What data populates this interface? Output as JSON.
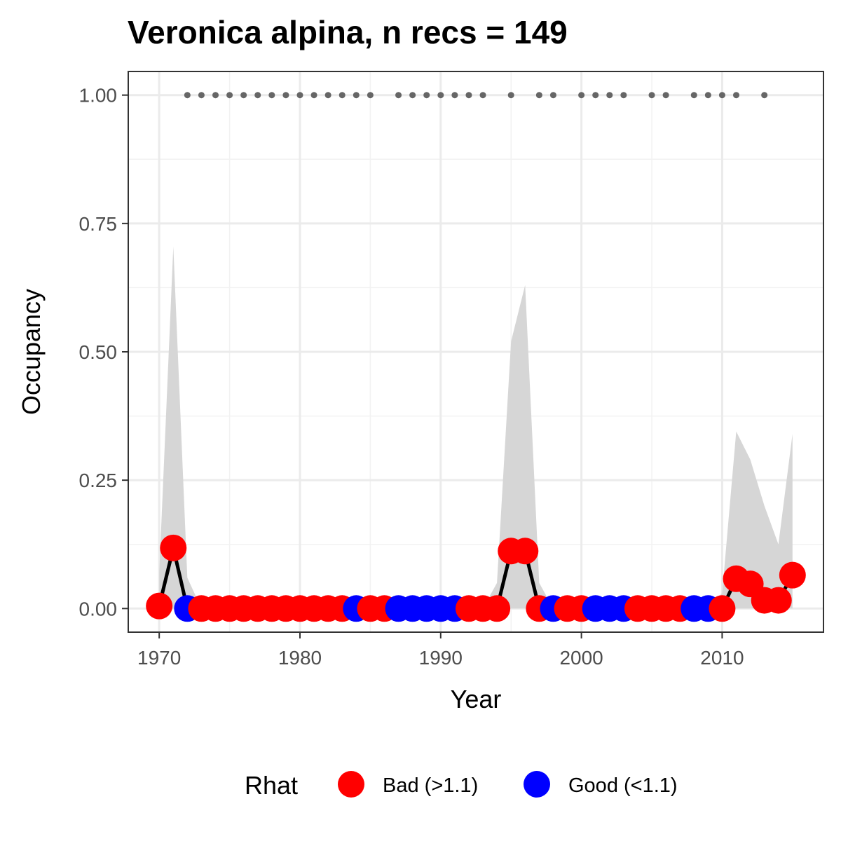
{
  "chart_data": {
    "type": "line",
    "title": "Veronica alpina, n recs = 149",
    "xlabel": "Year",
    "ylabel": "Occupancy",
    "xlim": [
      1967.8,
      2017.2
    ],
    "ylim": [
      -0.046,
      1.046
    ],
    "x_ticks": [
      1970,
      1980,
      1990,
      2000,
      2010
    ],
    "x_tick_labels": [
      "1970",
      "1980",
      "1990",
      "2000",
      "2010"
    ],
    "y_ticks": [
      0,
      0.25,
      0.5,
      0.75,
      1.0
    ],
    "y_tick_labels": [
      "0.00",
      "0.25",
      "0.50",
      "0.75",
      "1.00"
    ],
    "grid": true,
    "legend": {
      "title": "Rhat",
      "position": "bottom",
      "entries": [
        {
          "key": "bad",
          "label": "Bad (>1.1)",
          "color": "#ff0000"
        },
        {
          "key": "good",
          "label": "Good (<1.1)",
          "color": "#0000ff"
        }
      ]
    },
    "colors": {
      "bad": "#ff0000",
      "good": "#0000ff",
      "line": "#000000",
      "ribbon": "#d6d6d6",
      "records": "#666666"
    },
    "series": [
      {
        "x": [
          1970,
          1971,
          1972,
          1973,
          1974,
          1975,
          1976,
          1977,
          1978,
          1979,
          1980,
          1981,
          1982,
          1983,
          1984,
          1985,
          1986,
          1987,
          1988,
          1989,
          1990,
          1991,
          1992,
          1993,
          1994,
          1995,
          1996,
          1997,
          1998,
          1999,
          2000,
          2001,
          2002,
          2003,
          2004,
          2005,
          2006,
          2007,
          2008,
          2009,
          2010,
          2011,
          2012,
          2013,
          2014,
          2015
        ],
        "y": [
          0.005,
          0.118,
          0.0,
          0.0,
          0.0,
          0.0,
          0.0,
          0.0,
          0.0,
          0.0,
          0.0,
          0.0,
          0.0,
          0.0,
          0.0,
          0.0,
          0.0,
          0.0,
          0.0,
          0.0,
          0.0,
          0.0,
          0.0,
          0.0,
          0.0,
          0.112,
          0.112,
          0.0,
          0.0,
          0.0,
          0.0,
          0.0,
          0.0,
          0.0,
          0.0,
          0.0,
          0.0,
          0.0,
          0.0,
          0.0,
          0.0,
          0.058,
          0.048,
          0.016,
          0.016,
          0.065
        ],
        "rhat": [
          "bad",
          "bad",
          "good",
          "bad",
          "bad",
          "bad",
          "bad",
          "bad",
          "bad",
          "bad",
          "bad",
          "bad",
          "bad",
          "bad",
          "good",
          "bad",
          "bad",
          "good",
          "good",
          "good",
          "good",
          "good",
          "bad",
          "bad",
          "bad",
          "bad",
          "bad",
          "bad",
          "good",
          "bad",
          "bad",
          "good",
          "good",
          "good",
          "bad",
          "bad",
          "bad",
          "bad",
          "good",
          "good",
          "bad",
          "bad",
          "bad",
          "bad",
          "bad",
          "bad"
        ],
        "lower": [
          0,
          0,
          0,
          0,
          0,
          0,
          0,
          0,
          0,
          0,
          0,
          0,
          0,
          0,
          0,
          0,
          0,
          0,
          0,
          0,
          0,
          0,
          0,
          0,
          0,
          0,
          0,
          0,
          0,
          0,
          0,
          0,
          0,
          0,
          0,
          0,
          0,
          0,
          0,
          0,
          0,
          0,
          0,
          0,
          0,
          0
        ],
        "upper": [
          0.07,
          0.705,
          0.06,
          0,
          0,
          0,
          0,
          0,
          0,
          0,
          0,
          0,
          0,
          0,
          0,
          0,
          0,
          0,
          0,
          0,
          0,
          0,
          0,
          0,
          0.05,
          0.52,
          0.63,
          0.05,
          0,
          0,
          0,
          0,
          0,
          0,
          0,
          0,
          0,
          0,
          0,
          0,
          0.03,
          0.345,
          0.29,
          0.2,
          0.125,
          0.34
        ]
      }
    ],
    "record_years": [
      1972,
      1973,
      1974,
      1975,
      1976,
      1977,
      1978,
      1979,
      1980,
      1981,
      1982,
      1983,
      1984,
      1985,
      1987,
      1988,
      1989,
      1990,
      1991,
      1992,
      1993,
      1995,
      1997,
      1998,
      2000,
      2001,
      2002,
      2003,
      2005,
      2006,
      2008,
      2009,
      2010,
      2011,
      2013
    ],
    "record_y": 1.0
  }
}
